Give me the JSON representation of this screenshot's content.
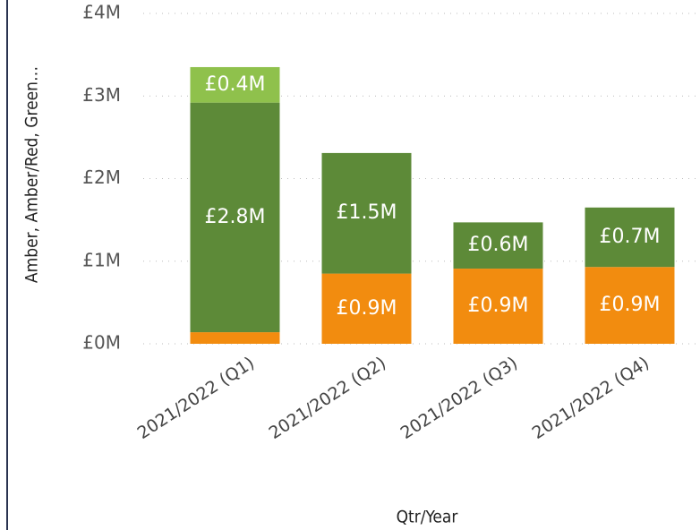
{
  "chart_data": {
    "type": "stacked-bar",
    "y_label": "Amber, Amber/Red, Green…",
    "x_label": "Qtr/Year",
    "categories": [
      "2021/2022 (Q1)",
      "2021/2022 (Q2)",
      "2021/2022 (Q3)",
      "2021/2022 (Q4)"
    ],
    "series": [
      {
        "color": "#f28c0f",
        "values": [
          0.14,
          0.85,
          0.91,
          0.93
        ],
        "value_labels": [
          null,
          "£0.9M",
          "£0.9M",
          "£0.9M"
        ]
      },
      {
        "color": "#5d8a38",
        "values": [
          2.78,
          1.46,
          0.56,
          0.72
        ],
        "value_labels": [
          "£2.8M",
          "£1.5M",
          "£0.6M",
          "£0.7M"
        ]
      },
      {
        "color": "#8fc14c",
        "values": [
          0.43,
          null,
          null,
          null
        ],
        "value_labels": [
          "£0.4M",
          null,
          null,
          null
        ]
      }
    ],
    "ylim": [
      0,
      4
    ],
    "yticks": [
      {
        "value": 0,
        "label": "£0M"
      },
      {
        "value": 1,
        "label": "£1M"
      },
      {
        "value": 2,
        "label": "£2M"
      },
      {
        "value": 3,
        "label": "£3M"
      },
      {
        "value": 4,
        "label": "£4M"
      }
    ],
    "grid": true
  }
}
